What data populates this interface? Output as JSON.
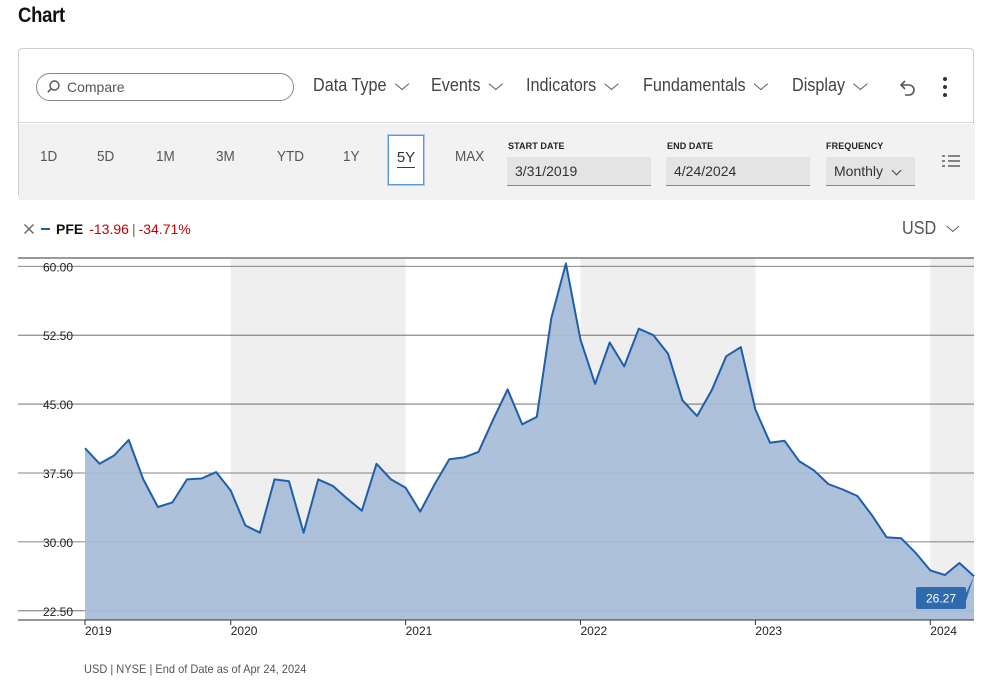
{
  "page": {
    "title": "Chart"
  },
  "toolbar": {
    "compare_placeholder": "Compare",
    "menus": [
      "Data Type",
      "Events",
      "Indicators",
      "Fundamentals",
      "Display"
    ],
    "icons": {
      "search": "search-icon",
      "undo": "undo-icon",
      "more": "more-vertical-icon"
    }
  },
  "range": {
    "buttons": [
      "1D",
      "5D",
      "1M",
      "3M",
      "YTD",
      "1Y",
      "5Y",
      "MAX"
    ],
    "active": "5Y",
    "start_label": "START DATE",
    "start_value": "3/31/2019",
    "end_label": "END DATE",
    "end_value": "4/24/2024",
    "frequency_label": "FREQUENCY",
    "frequency_value": "Monthly"
  },
  "legend": {
    "ticker": "PFE",
    "change": "-13.96",
    "change_pct": "-34.71%",
    "separator": "|",
    "currency": "USD",
    "colors": {
      "line": "#1f5fa8",
      "fill": "#a6bcd8",
      "negative": "#c00000"
    }
  },
  "chart_data": {
    "type": "area",
    "series": [
      {
        "x": [
          "2019-03",
          "2019-04",
          "2019-05",
          "2019-06",
          "2019-07",
          "2019-08",
          "2019-09",
          "2019-10",
          "2019-11",
          "2019-12",
          "2020-01",
          "2020-02",
          "2020-03",
          "2020-04",
          "2020-05",
          "2020-06",
          "2020-07",
          "2020-08",
          "2020-09",
          "2020-10",
          "2020-11",
          "2020-12",
          "2021-01",
          "2021-02",
          "2021-03",
          "2021-04",
          "2021-05",
          "2021-06",
          "2021-07",
          "2021-08",
          "2021-09",
          "2021-10",
          "2021-11",
          "2021-12",
          "2022-01",
          "2022-02",
          "2022-03",
          "2022-04",
          "2022-05",
          "2022-06",
          "2022-07",
          "2022-08",
          "2022-09",
          "2022-10",
          "2022-11",
          "2022-12",
          "2023-01",
          "2023-02",
          "2023-03",
          "2023-04",
          "2023-05",
          "2023-06",
          "2023-07",
          "2023-08",
          "2023-09",
          "2023-10",
          "2023-11",
          "2023-12",
          "2024-01",
          "2024-02",
          "2024-03",
          "2024-04"
        ],
        "values": [
          40.2,
          38.5,
          39.4,
          41.1,
          36.8,
          33.8,
          34.3,
          36.8,
          36.9,
          37.6,
          35.6,
          31.8,
          31.0,
          36.8,
          36.6,
          31.0,
          36.8,
          36.1,
          34.7,
          33.4,
          38.5,
          36.8,
          35.9,
          33.3,
          36.3,
          39.0,
          39.2,
          39.8,
          43.3,
          46.6,
          42.8,
          43.6,
          54.4,
          60.3,
          52.0,
          47.2,
          51.7,
          49.1,
          53.2,
          52.5,
          50.5,
          45.4,
          43.7,
          46.5,
          50.2,
          51.2,
          44.4,
          40.8,
          41.0,
          38.8,
          37.8,
          36.3,
          35.7,
          35.0,
          32.9,
          30.5,
          30.4,
          28.8,
          26.9,
          26.4,
          27.7,
          26.27
        ]
      }
    ],
    "y_ticks": [
      "60.00",
      "52.50",
      "45.00",
      "37.50",
      "30.00",
      "22.50"
    ],
    "ylim": [
      21.5,
      60.9
    ],
    "x_ticks": [
      "2019",
      "2020",
      "2021",
      "2022",
      "2023",
      "2024"
    ],
    "last_value_label": "26.27",
    "grid": "horizontal",
    "shaded_years": [
      "2020",
      "2022",
      "2024"
    ]
  },
  "footnote": "USD | NYSE | End of Date as of Apr 24, 2024"
}
